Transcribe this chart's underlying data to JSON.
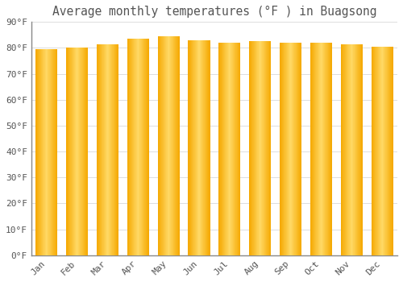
{
  "title": "Average monthly temperatures (°F ) in Buagsong",
  "months": [
    "Jan",
    "Feb",
    "Mar",
    "Apr",
    "May",
    "Jun",
    "Jul",
    "Aug",
    "Sep",
    "Oct",
    "Nov",
    "Dec"
  ],
  "values": [
    79.5,
    80.0,
    81.5,
    83.5,
    84.5,
    83.0,
    82.0,
    82.5,
    82.0,
    82.0,
    81.5,
    80.5
  ],
  "bar_color_center": "#FFD966",
  "bar_color_edge": "#F5A800",
  "background_color": "#FFFFFF",
  "grid_color": "#DDDDDD",
  "ylim": [
    0,
    90
  ],
  "yticks": [
    0,
    10,
    20,
    30,
    40,
    50,
    60,
    70,
    80,
    90
  ],
  "ytick_labels": [
    "0°F",
    "10°F",
    "20°F",
    "30°F",
    "40°F",
    "50°F",
    "60°F",
    "70°F",
    "80°F",
    "90°F"
  ],
  "title_fontsize": 10.5,
  "tick_fontsize": 8,
  "font_color": "#555555",
  "bar_width": 0.72,
  "n_gradient_steps": 50
}
